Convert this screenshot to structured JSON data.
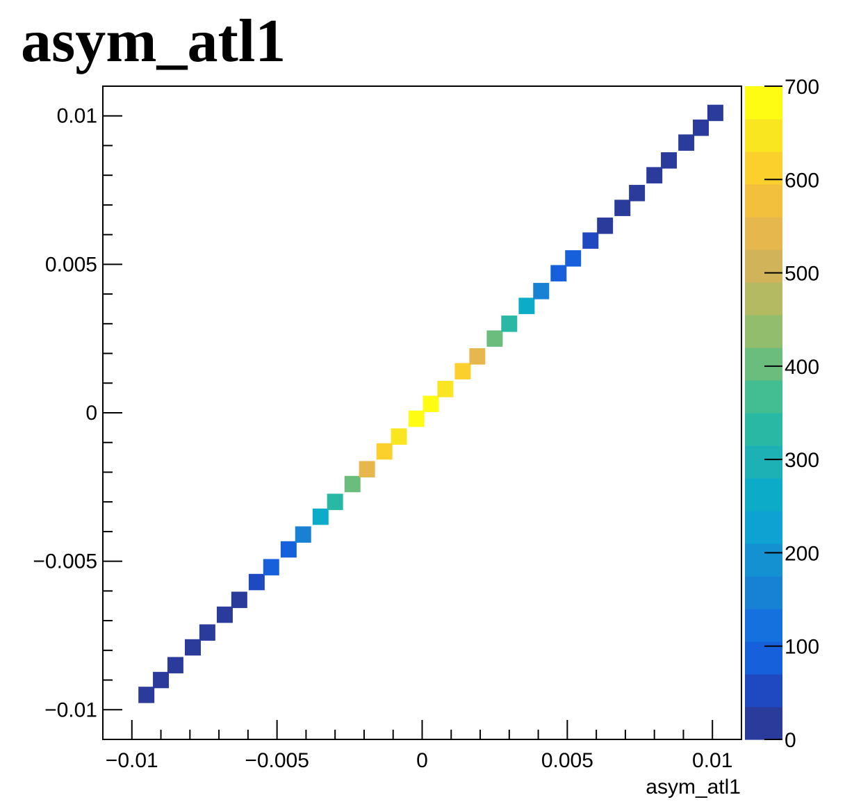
{
  "title": "asym_atl1",
  "chart_data": {
    "type": "heatmap",
    "title": "asym_atl1",
    "xlabel": "asym_atl1",
    "ylabel": "",
    "xlim": [
      -0.011,
      0.011
    ],
    "ylim": [
      -0.011,
      0.011
    ],
    "x_ticks": [
      -0.01,
      -0.005,
      0,
      0.005,
      0.01
    ],
    "x_tick_labels": [
      "−0.01",
      "−0.005",
      "0",
      "0.005",
      "0.01"
    ],
    "y_ticks": [
      -0.01,
      -0.005,
      0,
      0.005,
      0.01
    ],
    "y_tick_labels": [
      "−0.01",
      "−0.005",
      "0",
      "0.005",
      "0.01"
    ],
    "z_range": [
      0,
      700
    ],
    "z_ticks": [
      0,
      100,
      200,
      300,
      400,
      500,
      600,
      700
    ],
    "z_tick_labels": [
      "0",
      "100",
      "200",
      "300",
      "400",
      "500",
      "600",
      "700"
    ],
    "bin_width": 0.00055,
    "bins": [
      {
        "x": -0.0095,
        "y": -0.0095,
        "z": 20
      },
      {
        "x": -0.009,
        "y": -0.009,
        "z": 20
      },
      {
        "x": -0.0085,
        "y": -0.0085,
        "z": 20
      },
      {
        "x": -0.0079,
        "y": -0.0079,
        "z": 20
      },
      {
        "x": -0.0074,
        "y": -0.0074,
        "z": 20
      },
      {
        "x": -0.0068,
        "y": -0.0068,
        "z": 25
      },
      {
        "x": -0.0063,
        "y": -0.0063,
        "z": 30
      },
      {
        "x": -0.0057,
        "y": -0.0057,
        "z": 50
      },
      {
        "x": -0.0052,
        "y": -0.0052,
        "z": 70
      },
      {
        "x": -0.0046,
        "y": -0.0046,
        "z": 95
      },
      {
        "x": -0.0041,
        "y": -0.0041,
        "z": 150
      },
      {
        "x": -0.0035,
        "y": -0.0035,
        "z": 250
      },
      {
        "x": -0.003,
        "y": -0.003,
        "z": 320
      },
      {
        "x": -0.0024,
        "y": -0.0024,
        "z": 400
      },
      {
        "x": -0.0019,
        "y": -0.0019,
        "z": 550
      },
      {
        "x": -0.0013,
        "y": -0.0013,
        "z": 610
      },
      {
        "x": -0.0008,
        "y": -0.0008,
        "z": 650
      },
      {
        "x": -0.0002,
        "y": -0.0002,
        "z": 695
      },
      {
        "x": 0.0003,
        "y": 0.0003,
        "z": 695
      },
      {
        "x": 0.0008,
        "y": 0.0008,
        "z": 650
      },
      {
        "x": 0.0014,
        "y": 0.0014,
        "z": 610
      },
      {
        "x": 0.0019,
        "y": 0.0019,
        "z": 550
      },
      {
        "x": 0.0025,
        "y": 0.0025,
        "z": 400
      },
      {
        "x": 0.003,
        "y": 0.003,
        "z": 320
      },
      {
        "x": 0.0036,
        "y": 0.0036,
        "z": 250
      },
      {
        "x": 0.0041,
        "y": 0.0041,
        "z": 150
      },
      {
        "x": 0.0047,
        "y": 0.0047,
        "z": 95
      },
      {
        "x": 0.0052,
        "y": 0.0052,
        "z": 70
      },
      {
        "x": 0.0058,
        "y": 0.0058,
        "z": 50
      },
      {
        "x": 0.0063,
        "y": 0.0063,
        "z": 30
      },
      {
        "x": 0.0069,
        "y": 0.0069,
        "z": 25
      },
      {
        "x": 0.0074,
        "y": 0.0074,
        "z": 20
      },
      {
        "x": 0.008,
        "y": 0.008,
        "z": 20
      },
      {
        "x": 0.0085,
        "y": 0.0085,
        "z": 20
      },
      {
        "x": 0.0091,
        "y": 0.0091,
        "z": 20
      },
      {
        "x": 0.0096,
        "y": 0.0096,
        "z": 20
      },
      {
        "x": 0.0101,
        "y": 0.0101,
        "z": 20
      }
    ],
    "palette": [
      "#2a3b9c",
      "#1f49c1",
      "#1660db",
      "#1571dd",
      "#1782d4",
      "#1491d0",
      "#0da2d1",
      "#0cabc7",
      "#1db1b5",
      "#29b8a4",
      "#43bd92",
      "#6bbd7e",
      "#92bd6c",
      "#b4ba62",
      "#d1b459",
      "#e5b74c",
      "#f3c03d",
      "#fbcf2c",
      "#f9e520",
      "#fefc13"
    ]
  }
}
